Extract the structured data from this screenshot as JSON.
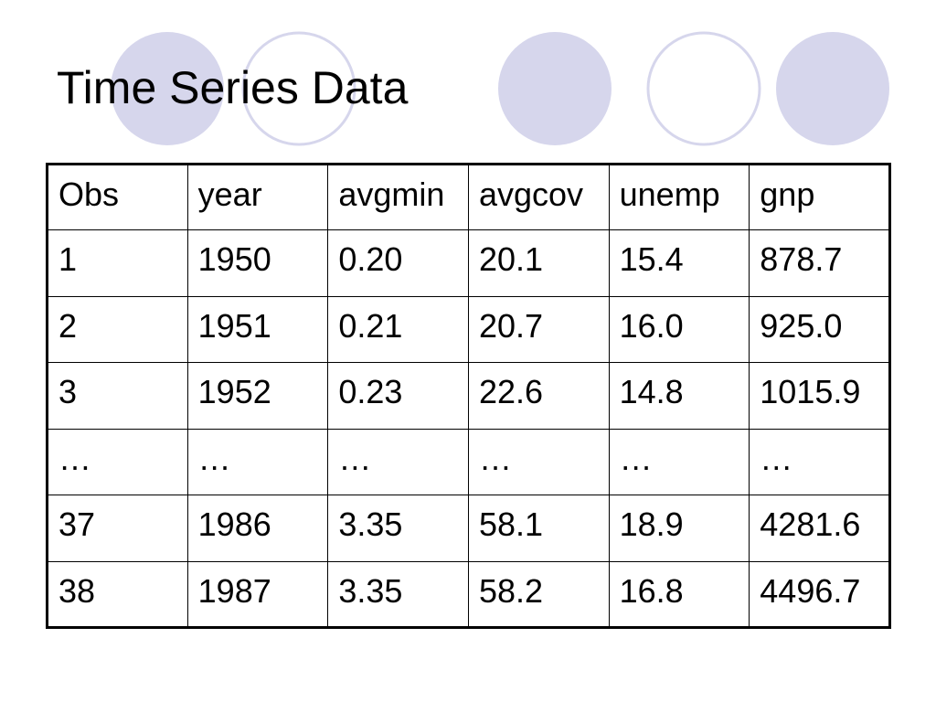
{
  "slide": {
    "title": "Time Series Data"
  },
  "decor_colors": {
    "filled": "#d6d6ec",
    "outline": "#d6d6ec"
  },
  "table": {
    "headers": [
      "Obs",
      "year",
      "avgmin",
      "avgcov",
      "unemp",
      "gnp"
    ],
    "rows": [
      [
        "1",
        "1950",
        "0.20",
        "20.1",
        "15.4",
        "878.7"
      ],
      [
        "2",
        "1951",
        "0.21",
        "20.7",
        "16.0",
        "925.0"
      ],
      [
        "3",
        "1952",
        "0.23",
        "22.6",
        "14.8",
        "1015.9"
      ],
      [
        "…",
        "…",
        "…",
        "…",
        "…",
        "…"
      ],
      [
        "37",
        "1986",
        "3.35",
        "58.1",
        "18.9",
        "4281.6"
      ],
      [
        "38",
        "1987",
        "3.35",
        "58.2",
        "16.8",
        "4496.7"
      ]
    ]
  }
}
